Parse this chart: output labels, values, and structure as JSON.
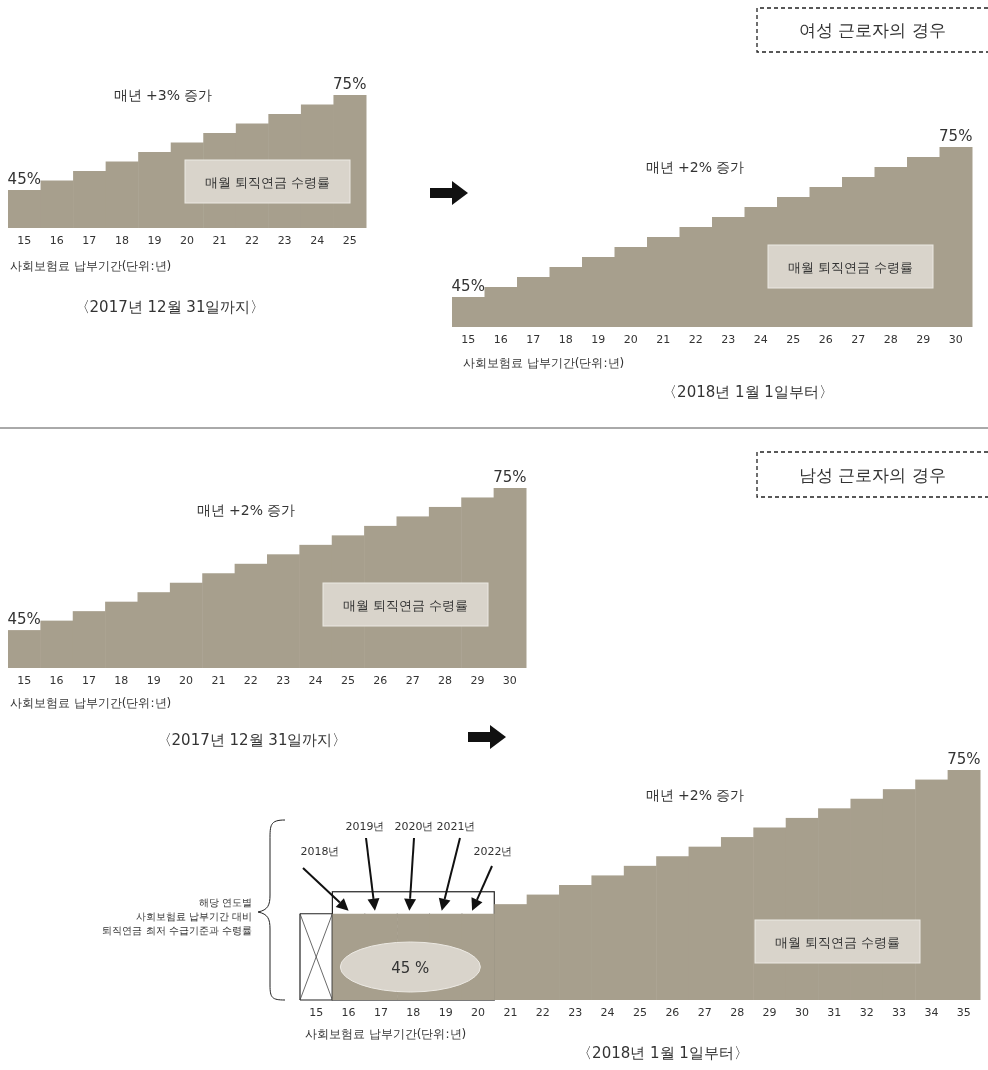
{
  "chart_data": [
    {
      "type": "bar",
      "title": "〈2017년 12월 31일까지〉",
      "xlabel": "사회보험료 납부기간(단위:년)",
      "categories": [
        "15",
        "16",
        "17",
        "18",
        "19",
        "20",
        "21",
        "22",
        "23",
        "24",
        "25"
      ],
      "values": [
        45,
        48,
        51,
        54,
        57,
        60,
        63,
        66,
        69,
        72,
        75
      ],
      "value_labels": [
        "45%",
        null,
        null,
        null,
        null,
        null,
        null,
        null,
        null,
        null,
        "75%"
      ],
      "color": "#a79f8d",
      "ylim": [
        33,
        75
      ],
      "annotations": [
        "매년 +3% 증가",
        "매월 퇴직연금 수령률"
      ]
    },
    {
      "type": "bar",
      "title": "〈2018년 1월 1일부터〉",
      "xlabel": "사회보험료 납부기간(단위:년)",
      "categories": [
        "15",
        "16",
        "17",
        "18",
        "19",
        "20",
        "21",
        "22",
        "23",
        "24",
        "25",
        "26",
        "27",
        "28",
        "29",
        "30"
      ],
      "values": [
        45,
        47,
        49,
        51,
        53,
        55,
        57,
        59,
        61,
        63,
        65,
        67,
        69,
        71,
        73,
        75
      ],
      "value_labels": [
        "45%",
        null,
        null,
        null,
        null,
        null,
        null,
        null,
        null,
        null,
        null,
        null,
        null,
        null,
        null,
        "75%"
      ],
      "color": "#a79f8d",
      "ylim": [
        39,
        75
      ],
      "annotations": [
        "여성 근로자의 경우",
        "매년 +2% 증가",
        "매월 퇴직연금 수령률"
      ]
    },
    {
      "type": "bar",
      "title": "〈2017년 12월 31일까지〉",
      "xlabel": "사회보험료 납부기간(단위:년)",
      "categories": [
        "15",
        "16",
        "17",
        "18",
        "19",
        "20",
        "21",
        "22",
        "23",
        "24",
        "25",
        "26",
        "27",
        "28",
        "29",
        "30"
      ],
      "values": [
        45,
        47,
        49,
        51,
        53,
        55,
        57,
        59,
        61,
        63,
        65,
        67,
        69,
        71,
        73,
        75
      ],
      "value_labels": [
        "45%",
        null,
        null,
        null,
        null,
        null,
        null,
        null,
        null,
        null,
        null,
        null,
        null,
        null,
        null,
        "75%"
      ],
      "color": "#a79f8d",
      "ylim": [
        37,
        75
      ],
      "annotations": [
        "남성 근로자의 경우",
        "매년 +2% 증가",
        "매월 퇴직연금 수령률"
      ]
    },
    {
      "type": "bar",
      "title": "〈2018년 1월 1일부터〉",
      "xlabel": "사회보험료 납부기간(단위:년)",
      "categories": [
        "15",
        "16",
        "17",
        "18",
        "19",
        "20",
        "21",
        "22",
        "23",
        "24",
        "25",
        "26",
        "27",
        "28",
        "29",
        "30",
        "31",
        "32",
        "33",
        "34",
        "35"
      ],
      "values": [
        null,
        45,
        45,
        45,
        45,
        45,
        47,
        49,
        51,
        53,
        55,
        57,
        59,
        61,
        63,
        65,
        67,
        69,
        71,
        73,
        75
      ],
      "value_labels": [
        null,
        null,
        null,
        "45 %",
        null,
        null,
        null,
        null,
        null,
        null,
        null,
        null,
        null,
        null,
        null,
        null,
        null,
        null,
        null,
        null,
        "75%"
      ],
      "color": "#a79f8d",
      "ylim": [
        27,
        75
      ],
      "annotations": [
        "매년 +2% 증가",
        "매월 퇴직연금 수령률",
        "2018년",
        "2019년",
        "2020년",
        "2021년",
        "2022년",
        "해당 연도별\n사회보험료 납부기간 대비\n퇴직연금 최저 수급기준과 수령률"
      ]
    }
  ]
}
